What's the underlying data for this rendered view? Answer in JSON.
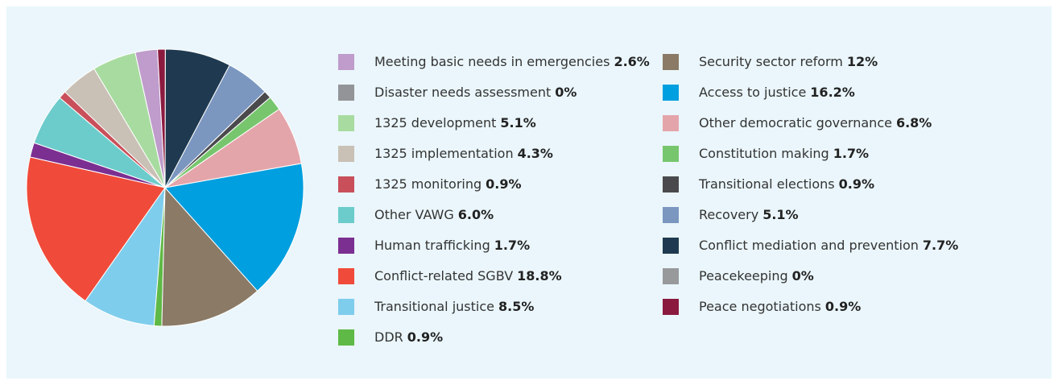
{
  "chart_data": {
    "type": "pie",
    "categories": [
      "Meeting basic needs in emergencies",
      "Disaster needs assessment",
      "1325 development",
      "1325 implementation",
      "1325 monitoring",
      "Other VAWG",
      "Human trafficking",
      "Conflict-related SGBV",
      "Transitional justice",
      "DDR",
      "Security sector reform",
      "Access to justice",
      "Other democratic governance",
      "Constitution making",
      "Transitional elections",
      "Recovery",
      "Conflict mediation and prevention",
      "Peacekeeping",
      "Peace negotiations"
    ],
    "values": [
      2.6,
      0,
      5.1,
      4.3,
      0.9,
      6.0,
      1.7,
      18.8,
      8.5,
      0.9,
      12,
      16.2,
      6.8,
      1.7,
      0.9,
      5.1,
      7.7,
      0,
      0.9
    ],
    "value_labels": [
      "2.6%",
      "0%",
      "5.1%",
      "4.3%",
      "0.9%",
      "6.0%",
      "1.7%",
      "18.8%",
      "8.5%",
      "0.9%",
      "12%",
      "16.2%",
      "6.8%",
      "1.7%",
      "0.9%",
      "5.1%",
      "7.7%",
      "0%",
      "0.9%"
    ],
    "colors": [
      "#bf9ccc",
      "#929497",
      "#a8dba0",
      "#c9c0b6",
      "#c9505a",
      "#6ccccb",
      "#7b2f91",
      "#f04b3a",
      "#7fcdec",
      "#5fb946",
      "#8a7a66",
      "#009fdf",
      "#e4a5aa",
      "#77c66e",
      "#4a4a4d",
      "#7b97c0",
      "#1f3a50",
      "#98999b",
      "#8b1a3f"
    ],
    "direction": "counterclockwise"
  }
}
